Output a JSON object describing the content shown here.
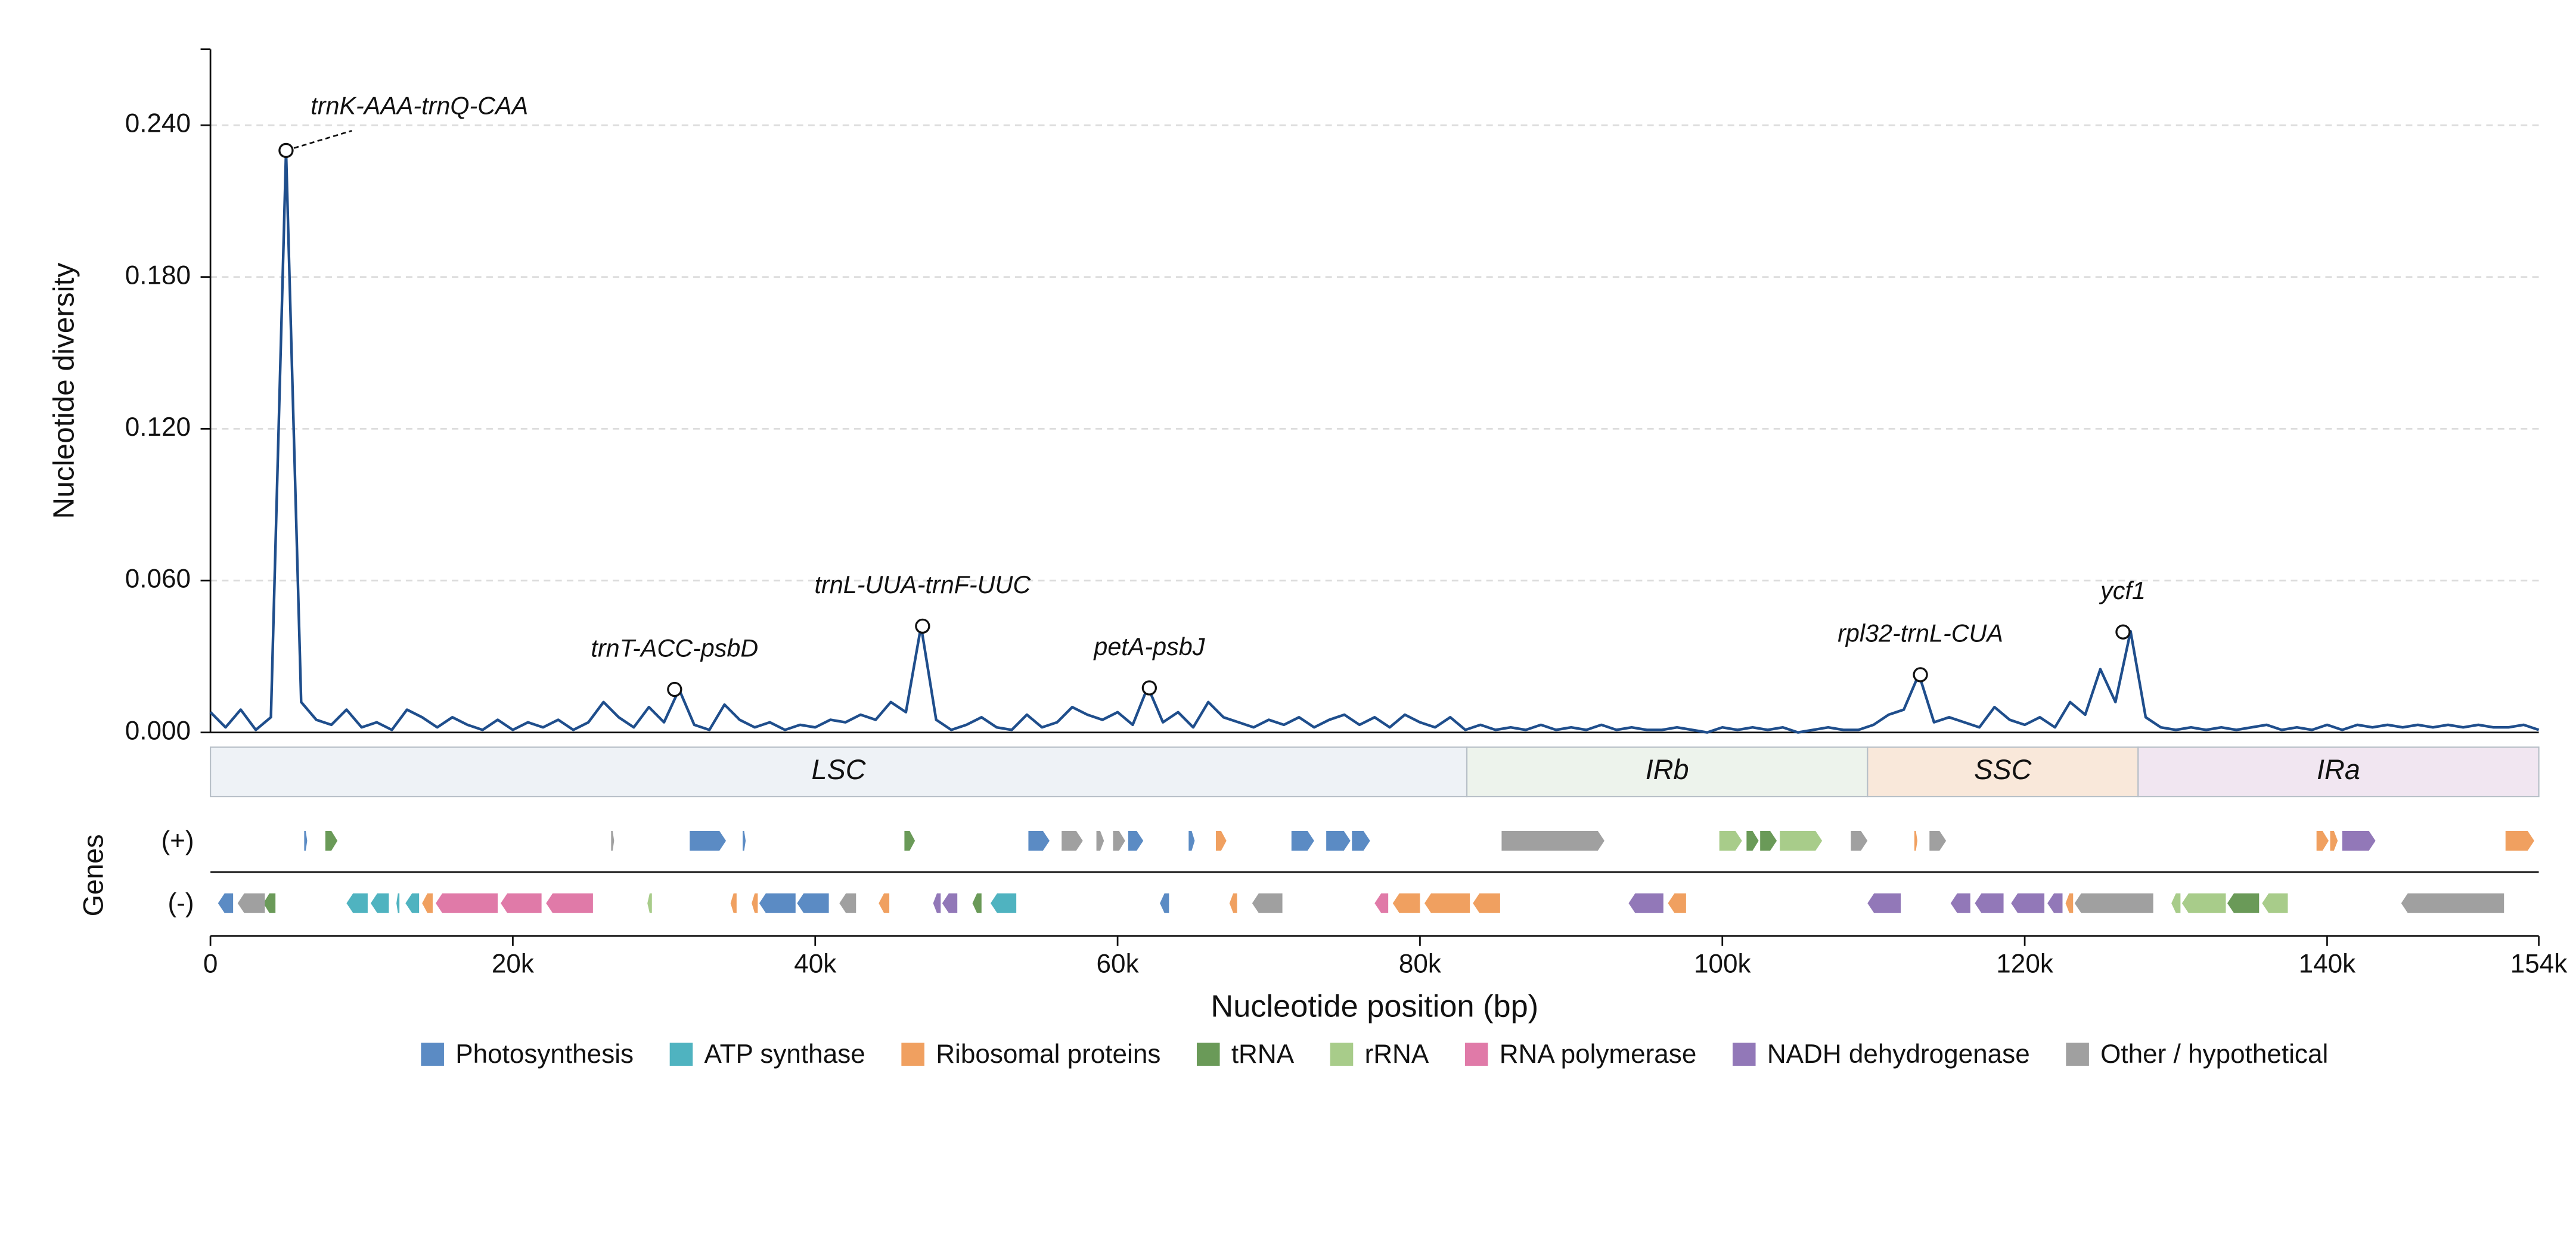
{
  "chart_data": {
    "type": "line",
    "ylabel": "Nucleotide diversity",
    "xlabel": "Nucleotide position (bp)",
    "track_label": "Genes",
    "strand_labels": [
      "(+)",
      "(-)"
    ],
    "color": "#1f4e8c",
    "grid": true,
    "xlim": [
      0,
      154000
    ],
    "ylim": [
      0,
      0.27
    ],
    "xticks": [
      0,
      {
        "value": 20000,
        "label": "20k"
      },
      {
        "value": 40000,
        "label": "40k"
      },
      {
        "value": 60000,
        "label": "60k"
      },
      {
        "value": 80000,
        "label": "80k"
      },
      {
        "value": 100000,
        "label": "100k"
      },
      {
        "value": 120000,
        "label": "120k"
      },
      {
        "value": 140000,
        "label": "140k"
      },
      {
        "value": 154000,
        "label": "154k"
      }
    ],
    "yticks": [
      {
        "value": 0,
        "label": "0.000"
      },
      {
        "value": 0.06,
        "label": "0.060"
      },
      {
        "value": 0.12,
        "label": "0.120"
      },
      {
        "value": 0.18,
        "label": "0.180"
      },
      {
        "value": 0.24,
        "label": "0.240"
      }
    ],
    "x": [
      0,
      1000,
      2000,
      3000,
      4000,
      5000,
      6000,
      7000,
      8000,
      9000,
      10000,
      11000,
      12000,
      13000,
      14000,
      15000,
      16000,
      17000,
      18000,
      19000,
      20000,
      21000,
      22000,
      23000,
      24000,
      25000,
      26000,
      27000,
      28000,
      29000,
      30000,
      31000,
      32000,
      33000,
      34000,
      35000,
      36000,
      37000,
      38000,
      39000,
      40000,
      41000,
      42000,
      43000,
      44000,
      45000,
      46000,
      47000,
      48000,
      49000,
      50000,
      51000,
      52000,
      53000,
      54000,
      55000,
      56000,
      57000,
      58000,
      59000,
      60000,
      61000,
      62000,
      63000,
      64000,
      65000,
      66000,
      67000,
      68000,
      69000,
      70000,
      71000,
      72000,
      73000,
      74000,
      75000,
      76000,
      77000,
      78000,
      79000,
      80000,
      81000,
      82000,
      83000,
      84000,
      85000,
      86000,
      87000,
      88000,
      89000,
      90000,
      91000,
      92000,
      93000,
      94000,
      95000,
      96000,
      97000,
      98000,
      99000,
      100000,
      101000,
      102000,
      103000,
      104000,
      105000,
      106000,
      107000,
      108000,
      109000,
      110000,
      111000,
      112000,
      113000,
      114000,
      115000,
      116000,
      117000,
      118000,
      119000,
      120000,
      121000,
      122000,
      123000,
      124000,
      125000,
      126000,
      127000,
      128000,
      129000,
      130000,
      131000,
      132000,
      133000,
      134000,
      135000,
      136000,
      137000,
      138000,
      139000,
      140000,
      141000,
      142000,
      143000,
      144000,
      145000,
      146000,
      147000,
      148000,
      149000,
      150000,
      151000,
      152000,
      153000,
      154000
    ],
    "values": [
      0.008,
      0.002,
      0.009,
      0.001,
      0.006,
      0.23,
      0.012,
      0.005,
      0.003,
      0.009,
      0.002,
      0.004,
      0.001,
      0.009,
      0.006,
      0.002,
      0.006,
      0.003,
      0.001,
      0.005,
      0.001,
      0.004,
      0.002,
      0.005,
      0.001,
      0.004,
      0.012,
      0.006,
      0.002,
      0.01,
      0.004,
      0.017,
      0.003,
      0.001,
      0.011,
      0.005,
      0.002,
      0.004,
      0.001,
      0.003,
      0.002,
      0.005,
      0.004,
      0.007,
      0.005,
      0.012,
      0.008,
      0.042,
      0.005,
      0.001,
      0.003,
      0.006,
      0.002,
      0.001,
      0.007,
      0.002,
      0.004,
      0.01,
      0.007,
      0.005,
      0.008,
      0.003,
      0.018,
      0.004,
      0.008,
      0.002,
      0.012,
      0.006,
      0.004,
      0.002,
      0.005,
      0.003,
      0.006,
      0.002,
      0.005,
      0.007,
      0.003,
      0.006,
      0.002,
      0.007,
      0.004,
      0.002,
      0.006,
      0.001,
      0.003,
      0.001,
      0.002,
      0.001,
      0.003,
      0.001,
      0.002,
      0.001,
      0.003,
      0.001,
      0.002,
      0.001,
      0.001,
      0.002,
      0.001,
      0,
      0.002,
      0.001,
      0.002,
      0.001,
      0.002,
      0,
      0.001,
      0.002,
      0.001,
      0.001,
      0.003,
      0.007,
      0.009,
      0.023,
      0.004,
      0.006,
      0.004,
      0.002,
      0.01,
      0.005,
      0.003,
      0.006,
      0.002,
      0.012,
      0.007,
      0.025,
      0.012,
      0.04,
      0.006,
      0.002,
      0.001,
      0.002,
      0.001,
      0.002,
      0.001,
      0.002,
      0.003,
      0.001,
      0.002,
      0.001,
      0.003,
      0.001,
      0.003,
      0.002,
      0.003,
      0.002,
      0.003,
      0.002,
      0.003,
      0.002,
      0.003,
      0.002,
      0.002,
      0.003,
      0.001
    ],
    "annotations": [
      {
        "label": "trnK-AAA-trnQ-CAA",
        "x": 5000,
        "y": 0.23
      },
      {
        "label": "trnT-ACC-psbD",
        "x": 30700,
        "y": 0.017
      },
      {
        "label": "trnL-UUA-trnF-UUC",
        "x": 47100,
        "y": 0.042
      },
      {
        "label": "petA-psbJ",
        "x": 62100,
        "y": 0.0176
      },
      {
        "label": "rpl32-trnL-CUA",
        "x": 113100,
        "y": 0.0228
      },
      {
        "label": "ycf1",
        "x": 126500,
        "y": 0.0397
      }
    ],
    "regions": [
      {
        "name": "LSC",
        "start": 0,
        "end": 83100,
        "color": "#eef2f6"
      },
      {
        "name": "IRb",
        "start": 83100,
        "end": 109600,
        "color": "#edf3ec"
      },
      {
        "name": "SSC",
        "start": 109600,
        "end": 127500,
        "color": "#f9e8da"
      },
      {
        "name": "IRa",
        "start": 127500,
        "end": 154000,
        "color": "#f1e6f1"
      }
    ],
    "gene_groups": [
      {
        "name": "Photosynthesis",
        "color": "#5b8bc4",
        "plus": [
          [
            6200,
            6400
          ],
          [
            31700,
            34100
          ],
          [
            35200,
            35400
          ],
          [
            54100,
            55500
          ],
          [
            60700,
            61700
          ],
          [
            64700,
            65100
          ],
          [
            71500,
            73000
          ],
          [
            73800,
            75400
          ],
          [
            75500,
            76700
          ]
        ],
        "minus": [
          [
            500,
            1500
          ],
          [
            36300,
            38700
          ],
          [
            38800,
            40900
          ],
          [
            62800,
            63400
          ]
        ]
      },
      {
        "name": "ATP synthase",
        "color": "#4fb3c0",
        "plus": [],
        "minus": [
          [
            9000,
            10400
          ],
          [
            10600,
            11800
          ],
          [
            12300,
            12500
          ],
          [
            12900,
            13800
          ],
          [
            51600,
            53300
          ]
        ]
      },
      {
        "name": "Ribosomal proteins",
        "color": "#f0a060",
        "plus": [
          [
            66500,
            67200
          ],
          [
            112700,
            112900
          ],
          [
            139300,
            140100
          ],
          [
            140200,
            140700
          ],
          [
            151800,
            153700
          ]
        ],
        "minus": [
          [
            14000,
            14700
          ],
          [
            34400,
            34800
          ],
          [
            35800,
            36200
          ],
          [
            44200,
            44900
          ],
          [
            67400,
            67900
          ],
          [
            78200,
            80000
          ],
          [
            80300,
            83300
          ],
          [
            83500,
            85300
          ],
          [
            96400,
            97600
          ],
          [
            122700,
            123200
          ]
        ]
      },
      {
        "name": "tRNA",
        "color": "#6a9a58",
        "plus": [
          [
            7600,
            8400
          ],
          [
            45900,
            46600
          ],
          [
            101600,
            102400
          ],
          [
            102500,
            103600
          ]
        ],
        "minus": [
          [
            3500,
            4300
          ],
          [
            50400,
            51000
          ],
          [
            133400,
            135500
          ]
        ]
      },
      {
        "name": "rRNA",
        "color": "#a8cc8a",
        "plus": [
          [
            99800,
            101300
          ],
          [
            103800,
            106600
          ]
        ],
        "minus": [
          [
            28900,
            29200
          ],
          [
            129700,
            130300
          ],
          [
            130400,
            133300
          ],
          [
            135700,
            137400
          ]
        ]
      },
      {
        "name": "RNA polymerase",
        "color": "#e07aa8",
        "plus": [],
        "minus": [
          [
            14900,
            19000
          ],
          [
            19200,
            21900
          ],
          [
            22200,
            25300
          ],
          [
            77000,
            77900
          ]
        ]
      },
      {
        "name": "NADH dehydrogenase",
        "color": "#9278b8",
        "plus": [
          [
            141000,
            143200
          ]
        ],
        "minus": [
          [
            47800,
            48300
          ],
          [
            48400,
            49400
          ],
          [
            93800,
            96100
          ],
          [
            109600,
            111800
          ],
          [
            115100,
            116400
          ],
          [
            116700,
            118600
          ],
          [
            119100,
            121300
          ],
          [
            121500,
            122500
          ]
        ]
      },
      {
        "name": "Other / hypothetical",
        "color": "#a0a0a0",
        "plus": [
          [
            26500,
            26700
          ],
          [
            56300,
            57700
          ],
          [
            58600,
            59100
          ],
          [
            59700,
            60500
          ],
          [
            85400,
            92200
          ],
          [
            108500,
            109600
          ],
          [
            113700,
            114800
          ]
        ],
        "minus": [
          [
            1800,
            3600
          ],
          [
            41600,
            42700
          ],
          [
            68900,
            70900
          ],
          [
            123300,
            128500
          ],
          [
            144900,
            151700
          ]
        ]
      }
    ]
  }
}
